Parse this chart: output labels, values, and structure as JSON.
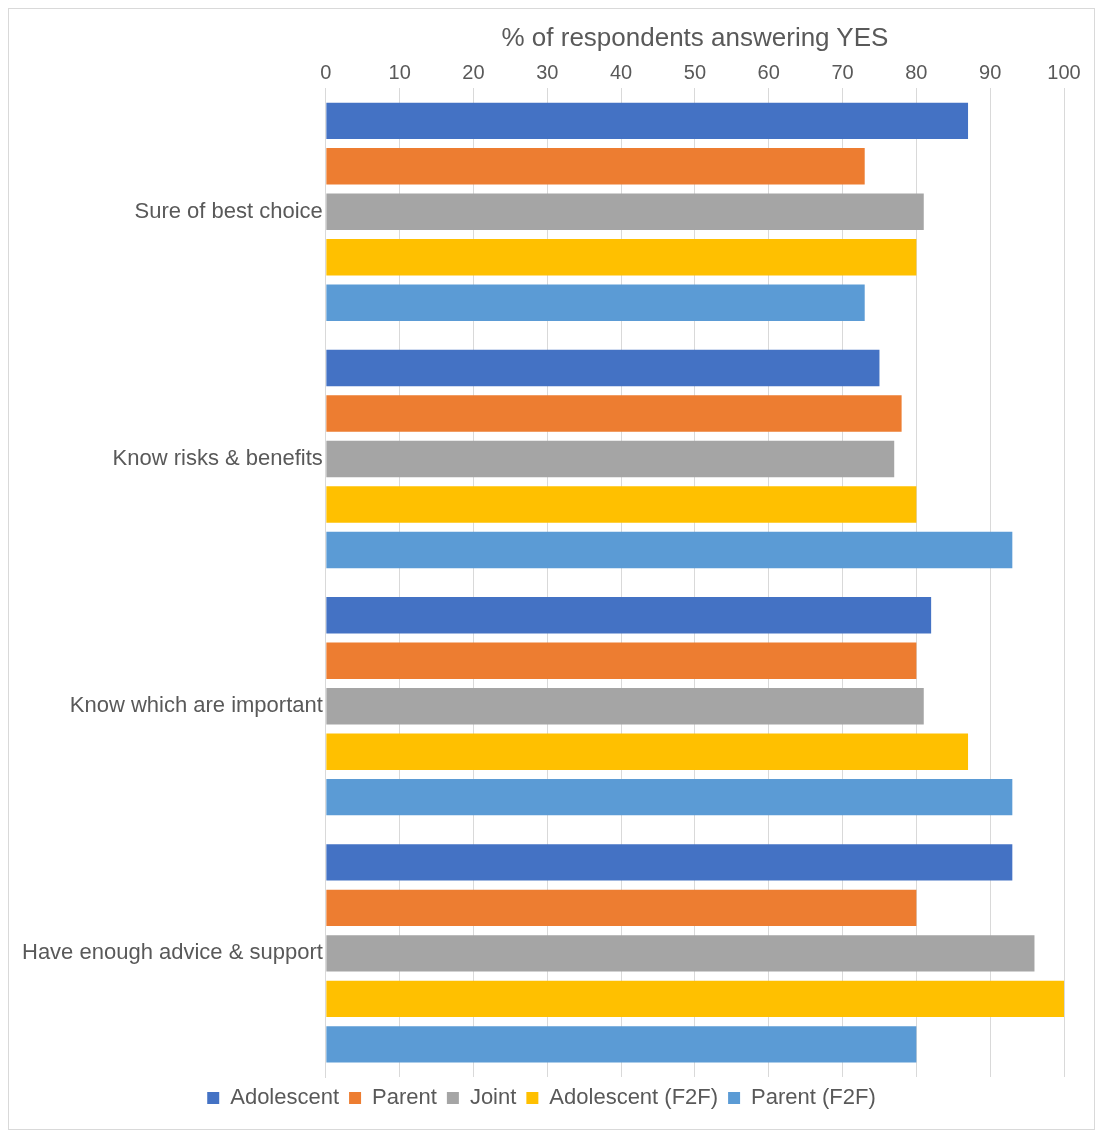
{
  "chart_data": {
    "type": "bar",
    "orientation": "horizontal",
    "xlabel": "% of respondents answering YES",
    "categories": [
      "Sure of best choice",
      "Know risks & benefits",
      "Know which are important",
      "Have enough advice & support"
    ],
    "series": [
      {
        "name": "Adolescent",
        "color": "#4472c4",
        "values": [
          87,
          75,
          82,
          93
        ]
      },
      {
        "name": "Parent",
        "color": "#ed7d31",
        "values": [
          73,
          78,
          80,
          80
        ]
      },
      {
        "name": "Joint",
        "color": "#a5a5a5",
        "values": [
          81,
          77,
          81,
          96
        ]
      },
      {
        "name": "Adolescent (F2F)",
        "color": "#ffc000",
        "values": [
          80,
          80,
          87,
          100
        ]
      },
      {
        "name": "Parent (F2F)",
        "color": "#5b9bd5",
        "values": [
          73,
          93,
          93,
          80
        ]
      }
    ],
    "xlim": [
      0,
      100
    ],
    "xticks": [
      0,
      10,
      20,
      30,
      40,
      50,
      60,
      70,
      80,
      90,
      100
    ],
    "grid": "x",
    "legend": "bottom"
  }
}
